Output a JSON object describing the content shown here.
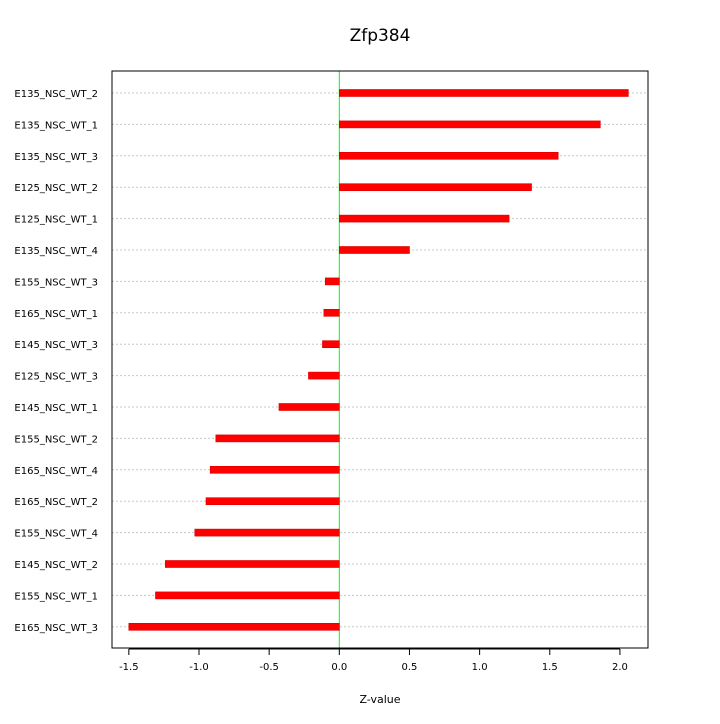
{
  "chart_data": {
    "type": "bar",
    "orientation": "horizontal",
    "title": "Zfp384",
    "xlabel": "Z-value",
    "ylabel": "",
    "xlim": [
      -1.62,
      2.2
    ],
    "xticks": [
      -1.5,
      -1.0,
      -0.5,
      0.0,
      0.5,
      1.0,
      1.5,
      2.0
    ],
    "xtick_labels": [
      "-1.5",
      "-1.0",
      "-0.5",
      "0.0",
      "0.5",
      "1.0",
      "1.5",
      "2.0"
    ],
    "grid": "horizontal dotted",
    "reference_line": 0,
    "categories": [
      "E135_NSC_WT_2",
      "E135_NSC_WT_1",
      "E135_NSC_WT_3",
      "E125_NSC_WT_2",
      "E125_NSC_WT_1",
      "E135_NSC_WT_4",
      "E155_NSC_WT_3",
      "E165_NSC_WT_1",
      "E145_NSC_WT_3",
      "E125_NSC_WT_3",
      "E145_NSC_WT_1",
      "E155_NSC_WT_2",
      "E165_NSC_WT_4",
      "E165_NSC_WT_2",
      "E155_NSC_WT_4",
      "E145_NSC_WT_2",
      "E155_NSC_WT_1",
      "E165_NSC_WT_3"
    ],
    "values": [
      2.06,
      1.86,
      1.56,
      1.37,
      1.21,
      0.5,
      -0.1,
      -0.11,
      -0.12,
      -0.22,
      -0.43,
      -0.88,
      -0.92,
      -0.95,
      -1.03,
      -1.24,
      -1.31,
      -1.5
    ],
    "colors": {
      "bar": "#ff0000",
      "bar_edge": "#d80000",
      "zero_line": "#00ff00",
      "grid": "#c8c8c8",
      "frame": "#000000"
    }
  }
}
